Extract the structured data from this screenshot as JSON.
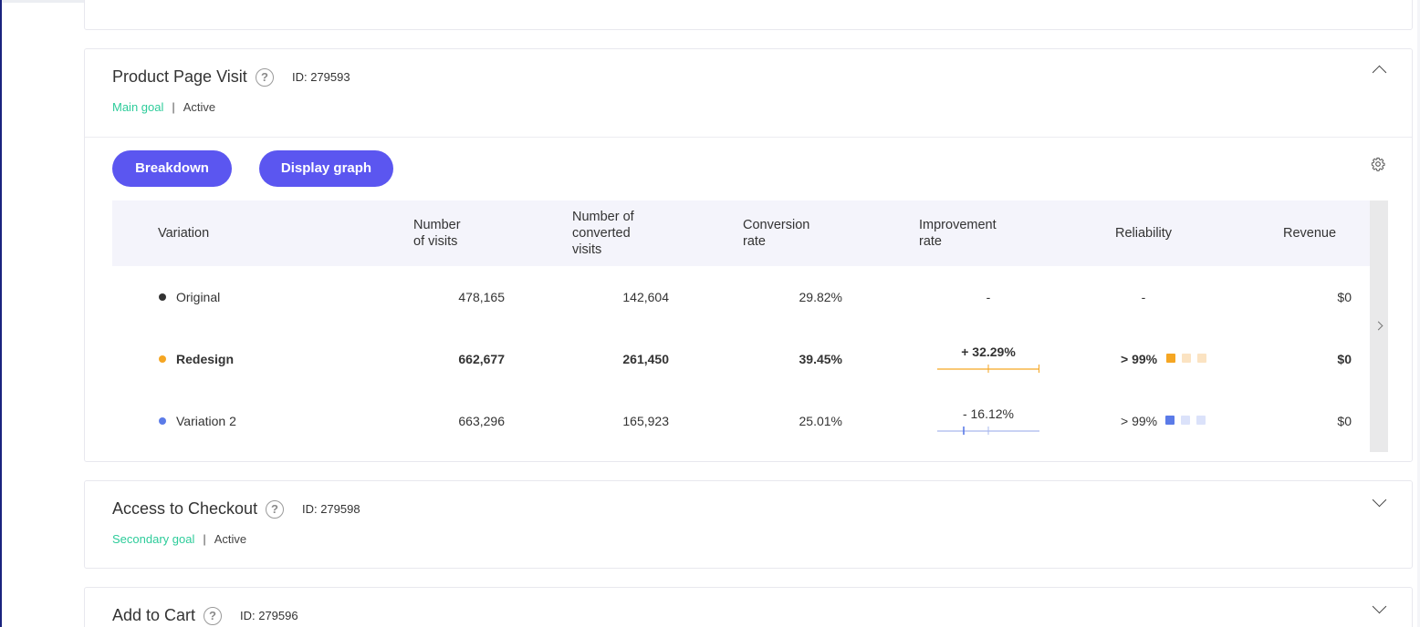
{
  "goals": [
    {
      "title": "Product Page Visit",
      "id_label": "ID: 279593",
      "type": "Main goal",
      "separator": "|",
      "status": "Active",
      "expanded": true
    },
    {
      "title": "Access to Checkout",
      "id_label": "ID: 279598",
      "type": "Secondary goal",
      "separator": "|",
      "status": "Active",
      "expanded": false
    },
    {
      "title": "Add to Cart",
      "id_label": "ID: 279596",
      "expanded": false
    }
  ],
  "help_icon_text": "?",
  "buttons": {
    "breakdown": "Breakdown",
    "display_graph": "Display graph"
  },
  "table": {
    "headers": {
      "variation": "Variation",
      "visits_line1": "Number",
      "visits_line2": "of visits",
      "converted_line1": "Number of",
      "converted_line2": "converted",
      "converted_line3": "visits",
      "conv_rate_line1": "Conversion",
      "conv_rate_line2": "rate",
      "improvement_line1": "Improvement",
      "improvement_line2": "rate",
      "reliability": "Reliability",
      "revenue": "Revenue"
    },
    "rows": [
      {
        "name": "Original",
        "dot_color": "#333333",
        "visits": "478,165",
        "converted": "142,604",
        "conversion_rate": "29.82%",
        "improvement": "-",
        "reliability": "-",
        "revenue": "$0"
      },
      {
        "name": "Redesign",
        "dot_color": "#f5a623",
        "visits": "662,677",
        "converted": "261,450",
        "conversion_rate": "39.45%",
        "improvement": "+ 32.29%",
        "reliability": "> 99%",
        "revenue": "$0"
      },
      {
        "name": "Variation 2",
        "dot_color": "#5b7be8",
        "visits": "663,296",
        "converted": "165,923",
        "conversion_rate": "25.01%",
        "improvement": "- 16.12%",
        "reliability": "> 99%",
        "revenue": "$0"
      }
    ]
  },
  "colors": {
    "accent": "#5b56f0",
    "goal_type": "#2dcc9a",
    "positive": "#f5a623",
    "negative": "#5b7be8"
  },
  "icons": [
    "help-icon",
    "chevron-up-icon",
    "chevron-down-icon",
    "gear-icon",
    "chevron-right-icon"
  ]
}
